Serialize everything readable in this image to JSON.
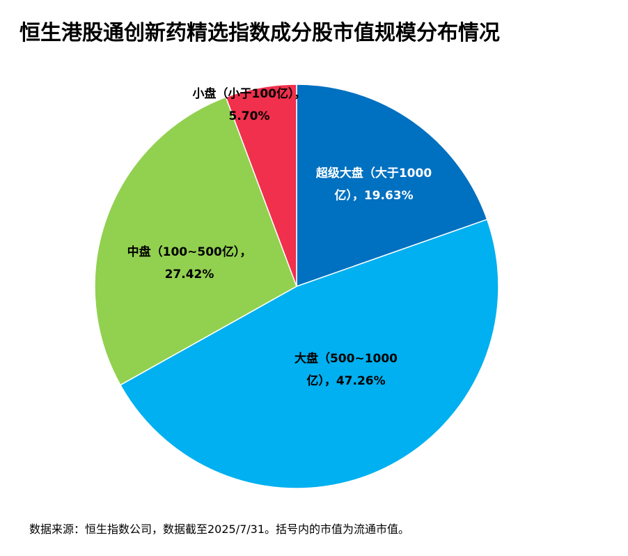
{
  "chart_data": {
    "type": "pie",
    "title": "恒生港股通创新药精选指数成分股市值规模分布情况",
    "slices": [
      {
        "label_lines": [
          "超级大盘（大于1000",
          "亿），19.63%"
        ],
        "value": 19.63,
        "color": "#0070C0",
        "label_color": "#FFFFFF"
      },
      {
        "label_lines": [
          "大盘（500~1000",
          "亿），47.26%"
        ],
        "value": 47.26,
        "color": "#00B0F0",
        "label_color": "#000000"
      },
      {
        "label_lines": [
          "中盘（100~500亿），",
          "27.42%"
        ],
        "value": 27.42,
        "color": "#92D050",
        "label_color": "#000000"
      },
      {
        "label_lines": [
          "小盘（小于100亿），",
          "5.70%"
        ],
        "value": 5.7,
        "color": "#F0304C",
        "label_color": "#000000"
      }
    ]
  },
  "footer": {
    "source": "数据来源：恒生指数公司，数据截至2025/7/31。括号内的市值为流通市值。"
  }
}
